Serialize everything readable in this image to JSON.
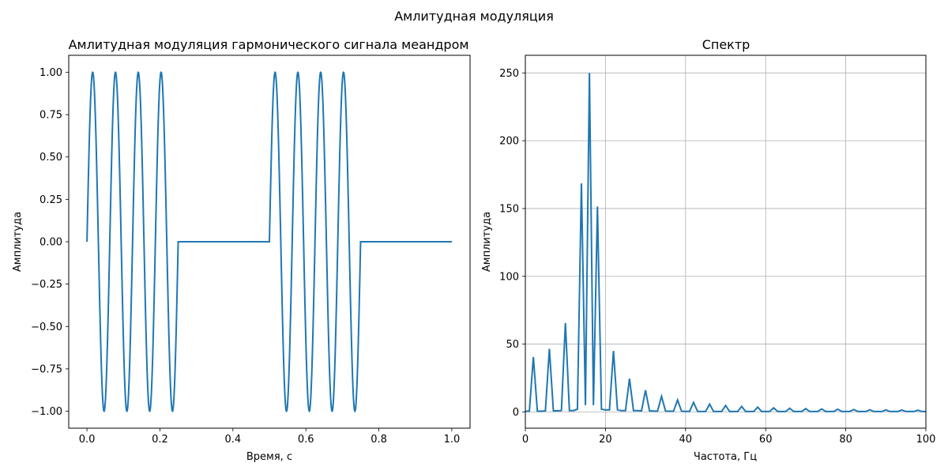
{
  "figure": {
    "suptitle": "Амлитудная модуляция",
    "line_color": "#1f77b4",
    "grid_color": "#b0b0b0"
  },
  "chart_data": [
    {
      "type": "line",
      "title": "Амлитудная модуляция гармонического сигнала меандром",
      "xlabel": "Время, с",
      "ylabel": "Амплитуда",
      "xlim": [
        -0.05,
        1.05
      ],
      "ylim": [
        -1.1,
        1.1
      ],
      "xticks": [
        0.0,
        0.2,
        0.4,
        0.6,
        0.8,
        1.0
      ],
      "xtick_labels": [
        "0.0",
        "0.2",
        "0.4",
        "0.6",
        "0.8",
        "1.0"
      ],
      "yticks": [
        -1.0,
        -0.75,
        -0.5,
        -0.25,
        0.0,
        0.25,
        0.5,
        0.75,
        1.0
      ],
      "ytick_labels": [
        "−1.00",
        "−0.75",
        "−0.50",
        "−0.25",
        "0.00",
        "0.25",
        "0.50",
        "0.75",
        "1.00"
      ],
      "grid": false,
      "series": [
        {
          "function": "sin(2*pi*16*t) * square(2*pi*2*t)",
          "carrier_frequency": 16,
          "modulation_frequency": 2,
          "t_range": [
            0,
            1
          ]
        }
      ]
    },
    {
      "type": "line",
      "title": "Спектр",
      "xlabel": "Частота, Гц",
      "ylabel": "Амплитуда",
      "xlim": [
        0,
        100
      ],
      "ylim": [
        -12,
        263
      ],
      "xticks": [
        0,
        20,
        40,
        60,
        80,
        100
      ],
      "xtick_labels": [
        "0",
        "20",
        "40",
        "60",
        "80",
        "100"
      ],
      "yticks": [
        0,
        50,
        100,
        150,
        200,
        250
      ],
      "ytick_labels": [
        "0",
        "50",
        "100",
        "150",
        "200",
        "250"
      ],
      "grid": true,
      "x": [
        0,
        1,
        2,
        3,
        4,
        5,
        6,
        7,
        8,
        9,
        10,
        11,
        12,
        13,
        14,
        15,
        16,
        17,
        18,
        19,
        20,
        21,
        22,
        23,
        24,
        25,
        26,
        27,
        28,
        29,
        30,
        31,
        32,
        33,
        34,
        35,
        36,
        37,
        38,
        39,
        40,
        41,
        42,
        43,
        44,
        45,
        46,
        47,
        48,
        49,
        50,
        51,
        52,
        53,
        54,
        55,
        56,
        57,
        58,
        59,
        60,
        61,
        62,
        63,
        64,
        65,
        66,
        67,
        68,
        69,
        70,
        71,
        72,
        73,
        74,
        75,
        76,
        77,
        78,
        79,
        80,
        81,
        82,
        83,
        84,
        85,
        86,
        87,
        88,
        89,
        90,
        91,
        92,
        93,
        94,
        95,
        96,
        97,
        98,
        99,
        100
      ],
      "values": [
        0.5,
        0.5,
        40.5,
        0.5,
        0.5,
        0.8,
        46.5,
        0.8,
        0.8,
        1.0,
        65.5,
        1.0,
        1.0,
        2.0,
        168.5,
        5.0,
        250.0,
        5.0,
        151.5,
        2.0,
        1.5,
        1.5,
        45.0,
        1.5,
        1.0,
        1.0,
        24.5,
        1.0,
        1.0,
        0.8,
        16.0,
        0.8,
        0.6,
        0.6,
        11.5,
        0.6,
        0.5,
        0.5,
        8.8,
        0.5,
        0.4,
        0.4,
        7.0,
        0.4,
        0.3,
        0.3,
        5.7,
        0.3,
        0.3,
        0.3,
        4.7,
        0.3,
        0.3,
        0.3,
        4.0,
        0.3,
        0.3,
        0.3,
        3.5,
        0.3,
        0.3,
        0.3,
        3.0,
        0.3,
        0.3,
        0.3,
        2.7,
        0.3,
        0.3,
        0.3,
        2.4,
        0.3,
        0.3,
        0.3,
        2.2,
        0.3,
        0.3,
        0.3,
        2.0,
        0.3,
        0.3,
        0.3,
        1.8,
        0.3,
        0.3,
        0.3,
        1.6,
        0.3,
        0.3,
        0.3,
        1.5,
        0.3,
        0.3,
        0.3,
        1.4,
        0.3,
        0.3,
        0.3,
        1.3,
        0.3,
        0.3
      ]
    }
  ]
}
